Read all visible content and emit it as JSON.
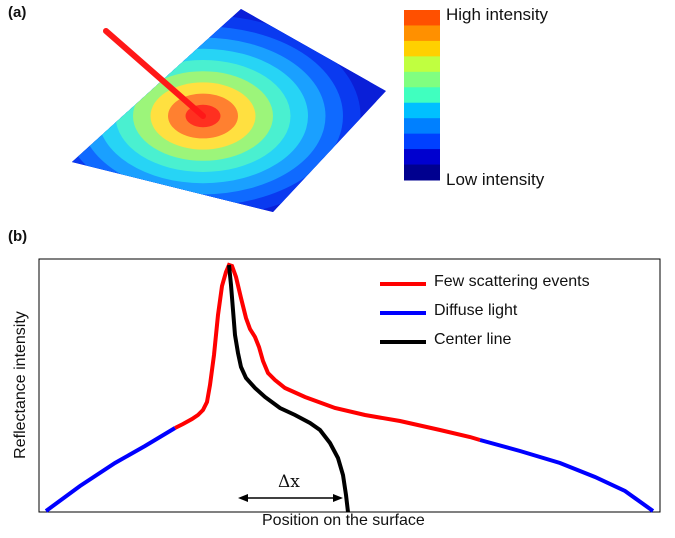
{
  "panel_a": {
    "label": "(a)",
    "colorbar": {
      "high_label": "High intensity",
      "low_label": "Low intensity",
      "colors": [
        "#00008f",
        "#0000cf",
        "#0040ff",
        "#0080ff",
        "#00c0ff",
        "#40ffbf",
        "#80ff80",
        "#c0ff40",
        "#ffd000",
        "#ff9000",
        "#ff5000"
      ]
    },
    "rings": [
      "#0a1fd8",
      "#0a3af0",
      "#0f6aff",
      "#1aa0ff",
      "#27d4f5",
      "#4af0d0",
      "#9cf57a",
      "#ffe040",
      "#ff8030",
      "#ff3020"
    ],
    "beam_color": "#ff1818"
  },
  "panel_b": {
    "label": "(b)",
    "xlabel": "Position on the surface",
    "ylabel": "Reflectance intensity",
    "delta_label": "Δx",
    "legend": [
      {
        "label": "Few scattering events",
        "color": "#ff0000"
      },
      {
        "label": "Diffuse light",
        "color": "#0000ff"
      },
      {
        "label": "Center line",
        "color": "#000000"
      }
    ]
  }
}
